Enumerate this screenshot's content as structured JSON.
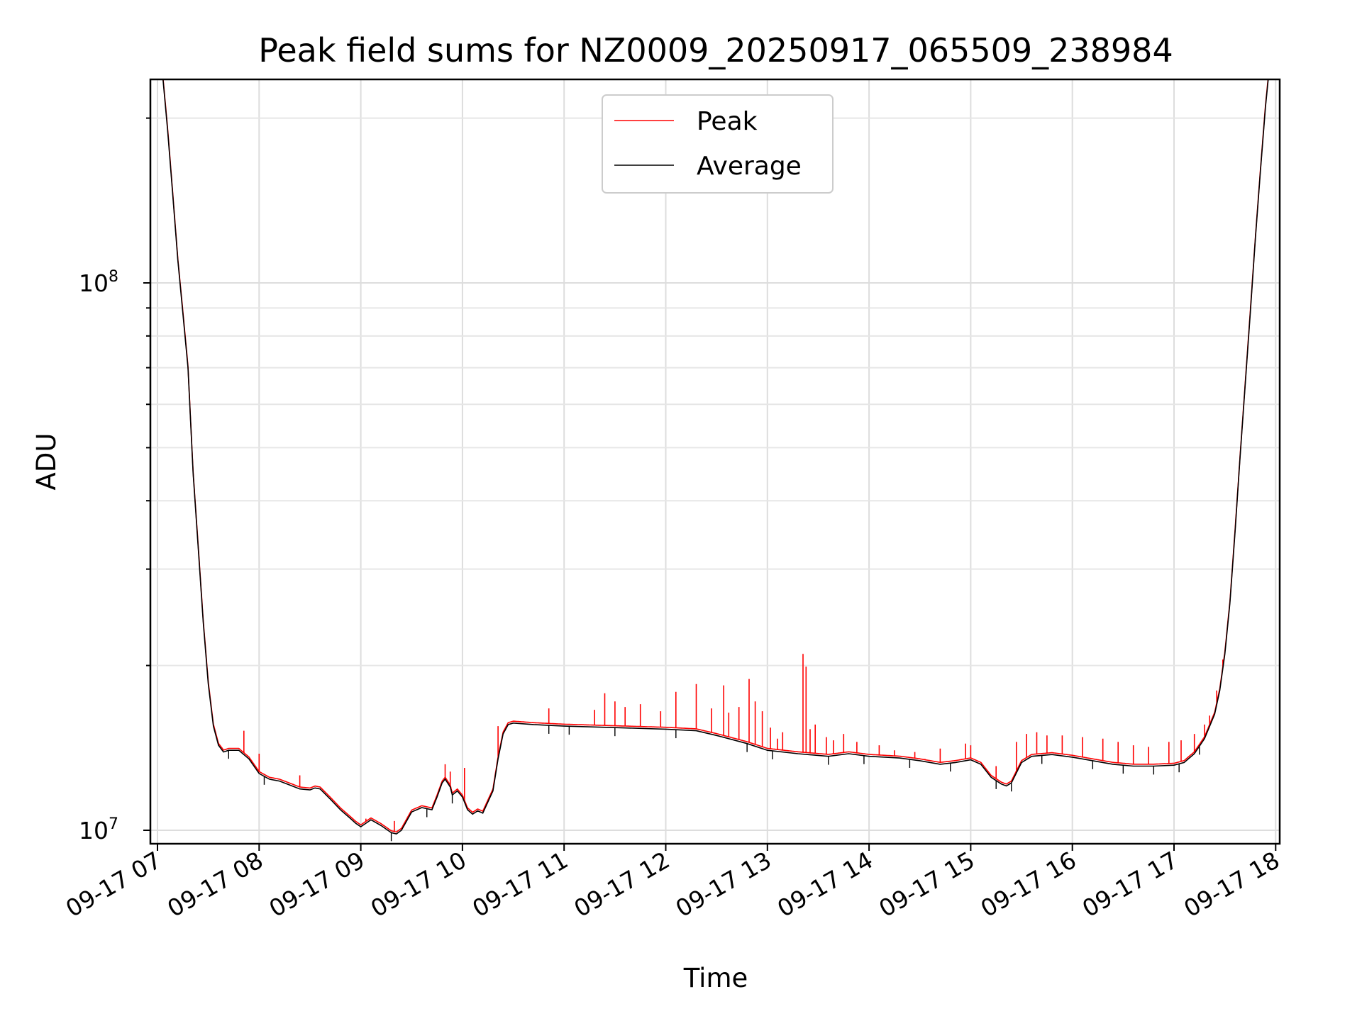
{
  "chart_data": {
    "type": "line",
    "title": "Peak field sums for NZ0009_20250917_065509_238984",
    "xlabel": "Time",
    "ylabel": "ADU",
    "yscale": "log",
    "xlim_hours": [
      6.92,
      18.03
    ],
    "ylim": [
      9600000,
      260000000
    ],
    "x_tick_hours": [
      7,
      8,
      9,
      10,
      11,
      12,
      13,
      14,
      15,
      16,
      17,
      18
    ],
    "x_tick_labels": [
      "09-17 07",
      "09-17 08",
      "09-17 09",
      "09-17 10",
      "09-17 11",
      "09-17 12",
      "09-17 13",
      "09-17 14",
      "09-17 15",
      "09-17 16",
      "09-17 17",
      "09-17 18"
    ],
    "y_major_ticks": [
      {
        "value": 10000000,
        "base": "10",
        "exp": "7"
      },
      {
        "value": 100000000,
        "base": "10",
        "exp": "8"
      }
    ],
    "y_minor_ticks": [
      20000000,
      30000000,
      40000000,
      50000000,
      60000000,
      70000000,
      80000000,
      90000000,
      200000000
    ],
    "grid": true,
    "legend_position": "upper-center",
    "colors": {
      "peak": "#ff0000",
      "average": "#000000"
    },
    "series": [
      {
        "name": "Peak",
        "color": "#ff0000",
        "spikes": [
          [
            7.85,
            15200000
          ],
          [
            8.0,
            13800000
          ],
          [
            8.4,
            12600000
          ],
          [
            9.05,
            10500000
          ],
          [
            9.33,
            10400000
          ],
          [
            9.83,
            13200000
          ],
          [
            9.88,
            12800000
          ],
          [
            10.02,
            13000000
          ],
          [
            10.85,
            16700000
          ],
          [
            10.35,
            15500000
          ],
          [
            11.3,
            16600000
          ],
          [
            11.4,
            17800000
          ],
          [
            11.5,
            17200000
          ],
          [
            11.6,
            16800000
          ],
          [
            11.75,
            17000000
          ],
          [
            11.95,
            16500000
          ],
          [
            12.1,
            17900000
          ],
          [
            12.3,
            18500000
          ],
          [
            12.45,
            16700000
          ],
          [
            12.57,
            18400000
          ],
          [
            12.62,
            16400000
          ],
          [
            12.72,
            16800000
          ],
          [
            12.82,
            18900000
          ],
          [
            12.88,
            17200000
          ],
          [
            12.95,
            16500000
          ],
          [
            13.03,
            15400000
          ],
          [
            13.1,
            14700000
          ],
          [
            13.15,
            15100000
          ],
          [
            13.35,
            21000000
          ],
          [
            13.38,
            19900000
          ],
          [
            13.42,
            15300000
          ],
          [
            13.47,
            15600000
          ],
          [
            13.58,
            14800000
          ],
          [
            13.65,
            14600000
          ],
          [
            13.75,
            15000000
          ],
          [
            13.88,
            14500000
          ],
          [
            14.1,
            14300000
          ],
          [
            14.25,
            14000000
          ],
          [
            14.45,
            13900000
          ],
          [
            14.55,
            13500000
          ],
          [
            14.7,
            14100000
          ],
          [
            14.95,
            14400000
          ],
          [
            15.0,
            14300000
          ],
          [
            15.25,
            13100000
          ],
          [
            15.45,
            14500000
          ],
          [
            15.55,
            15000000
          ],
          [
            15.65,
            15100000
          ],
          [
            15.75,
            14900000
          ],
          [
            15.9,
            14900000
          ],
          [
            16.1,
            14800000
          ],
          [
            16.3,
            14700000
          ],
          [
            16.45,
            14500000
          ],
          [
            16.6,
            14300000
          ],
          [
            16.75,
            14200000
          ],
          [
            16.95,
            14500000
          ],
          [
            17.07,
            14600000
          ],
          [
            17.2,
            15000000
          ],
          [
            17.3,
            15600000
          ],
          [
            17.35,
            16200000
          ],
          [
            17.42,
            18000000
          ],
          [
            17.48,
            20500000
          ]
        ]
      },
      {
        "name": "Average",
        "color": "#000000",
        "points": [
          [
            6.93,
            260000000
          ],
          [
            7.0,
            260000000
          ],
          [
            7.05,
            240000000
          ],
          [
            7.1,
            190000000
          ],
          [
            7.15,
            145000000
          ],
          [
            7.2,
            110000000
          ],
          [
            7.25,
            88000000
          ],
          [
            7.3,
            70000000
          ],
          [
            7.35,
            45000000
          ],
          [
            7.4,
            33000000
          ],
          [
            7.45,
            24000000
          ],
          [
            7.5,
            18500000
          ],
          [
            7.55,
            15500000
          ],
          [
            7.6,
            14300000
          ],
          [
            7.65,
            13900000
          ],
          [
            7.7,
            14000000
          ],
          [
            7.8,
            14000000
          ],
          [
            7.9,
            13500000
          ],
          [
            8.0,
            12700000
          ],
          [
            8.1,
            12400000
          ],
          [
            8.2,
            12300000
          ],
          [
            8.3,
            12100000
          ],
          [
            8.4,
            11900000
          ],
          [
            8.5,
            11850000
          ],
          [
            8.55,
            11950000
          ],
          [
            8.6,
            11900000
          ],
          [
            8.7,
            11400000
          ],
          [
            8.8,
            10900000
          ],
          [
            8.9,
            10500000
          ],
          [
            8.95,
            10300000
          ],
          [
            9.0,
            10150000
          ],
          [
            9.05,
            10300000
          ],
          [
            9.1,
            10450000
          ],
          [
            9.2,
            10200000
          ],
          [
            9.3,
            9900000
          ],
          [
            9.35,
            9850000
          ],
          [
            9.4,
            10000000
          ],
          [
            9.5,
            10800000
          ],
          [
            9.6,
            11000000
          ],
          [
            9.7,
            10900000
          ],
          [
            9.75,
            11500000
          ],
          [
            9.8,
            12200000
          ],
          [
            9.83,
            12400000
          ],
          [
            9.88,
            12000000
          ],
          [
            9.9,
            11600000
          ],
          [
            9.95,
            11800000
          ],
          [
            10.0,
            11500000
          ],
          [
            10.05,
            10900000
          ],
          [
            10.1,
            10700000
          ],
          [
            10.15,
            10850000
          ],
          [
            10.2,
            10750000
          ],
          [
            10.3,
            11800000
          ],
          [
            10.35,
            13500000
          ],
          [
            10.4,
            15000000
          ],
          [
            10.45,
            15600000
          ],
          [
            10.5,
            15700000
          ],
          [
            10.7,
            15600000
          ],
          [
            11.0,
            15500000
          ],
          [
            11.5,
            15400000
          ],
          [
            12.0,
            15300000
          ],
          [
            12.3,
            15200000
          ],
          [
            12.5,
            14900000
          ],
          [
            12.8,
            14400000
          ],
          [
            13.0,
            14000000
          ],
          [
            13.3,
            13800000
          ],
          [
            13.6,
            13650000
          ],
          [
            13.8,
            13800000
          ],
          [
            14.0,
            13650000
          ],
          [
            14.3,
            13550000
          ],
          [
            14.5,
            13400000
          ],
          [
            14.7,
            13200000
          ],
          [
            14.85,
            13300000
          ],
          [
            15.0,
            13450000
          ],
          [
            15.1,
            13200000
          ],
          [
            15.2,
            12500000
          ],
          [
            15.3,
            12150000
          ],
          [
            15.35,
            12050000
          ],
          [
            15.4,
            12200000
          ],
          [
            15.5,
            13300000
          ],
          [
            15.6,
            13650000
          ],
          [
            15.8,
            13750000
          ],
          [
            16.0,
            13600000
          ],
          [
            16.2,
            13400000
          ],
          [
            16.4,
            13200000
          ],
          [
            16.6,
            13100000
          ],
          [
            16.8,
            13100000
          ],
          [
            17.0,
            13150000
          ],
          [
            17.1,
            13300000
          ],
          [
            17.2,
            13800000
          ],
          [
            17.3,
            14700000
          ],
          [
            17.4,
            16300000
          ],
          [
            17.45,
            18000000
          ],
          [
            17.5,
            21000000
          ],
          [
            17.55,
            26000000
          ],
          [
            17.6,
            35000000
          ],
          [
            17.65,
            48000000
          ],
          [
            17.7,
            65000000
          ],
          [
            17.75,
            88000000
          ],
          [
            17.8,
            120000000
          ],
          [
            17.85,
            160000000
          ],
          [
            17.9,
            210000000
          ],
          [
            17.95,
            260000000
          ],
          [
            18.03,
            260000000
          ]
        ]
      }
    ]
  }
}
